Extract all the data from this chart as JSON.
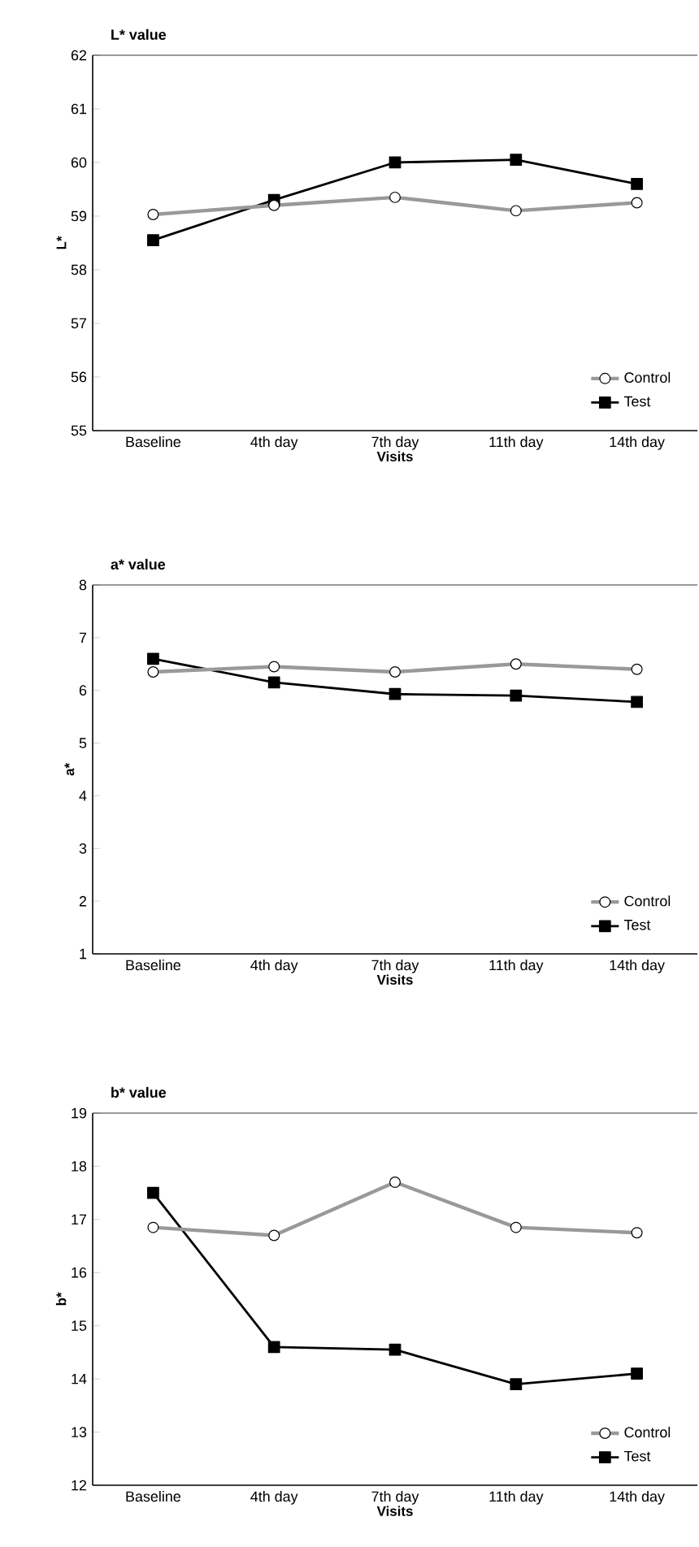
{
  "chart_data": [
    {
      "type": "line",
      "title": "L* value",
      "xlabel": "Visits",
      "ylabel": "L*",
      "categories": [
        "Baseline",
        "4th day",
        "7th day",
        "11th day",
        "14th day"
      ],
      "ylim": [
        55,
        62
      ],
      "yticks": [
        55,
        56,
        57,
        58,
        59,
        60,
        61,
        62
      ],
      "legend": "bottom right",
      "line_style": "solid",
      "series": [
        {
          "name": "Control",
          "color": "#999999",
          "marker": "circle",
          "values": [
            59.03,
            59.2,
            59.35,
            59.1,
            59.25
          ]
        },
        {
          "name": "Test",
          "color": "#000000",
          "marker": "square",
          "values": [
            58.55,
            59.3,
            60.0,
            60.05,
            59.6
          ]
        }
      ]
    },
    {
      "type": "line",
      "title": "a* value",
      "xlabel": "Visits",
      "ylabel": "a*",
      "categories": [
        "Baseline",
        "4th day",
        "7th day",
        "11th day",
        "14th day"
      ],
      "ylim": [
        1,
        8
      ],
      "yticks": [
        1,
        2,
        3,
        4,
        5,
        6,
        7,
        8
      ],
      "legend": "bottom right",
      "line_style": "solid",
      "series": [
        {
          "name": "Control",
          "color": "#999999",
          "marker": "circle",
          "values": [
            6.35,
            6.45,
            6.35,
            6.5,
            6.4
          ]
        },
        {
          "name": "Test",
          "color": "#000000",
          "marker": "square",
          "values": [
            6.6,
            6.15,
            5.93,
            5.9,
            5.78
          ]
        }
      ]
    },
    {
      "type": "line",
      "title": "b* value",
      "xlabel": "Visits",
      "ylabel": "b*",
      "categories": [
        "Baseline",
        "4th day",
        "7th day",
        "11th day",
        "14th day"
      ],
      "ylim": [
        12,
        19
      ],
      "yticks": [
        12,
        13,
        14,
        15,
        16,
        17,
        18,
        19
      ],
      "legend": "bottom right",
      "line_style": "solid",
      "series": [
        {
          "name": "Control",
          "color": "#999999",
          "marker": "circle",
          "values": [
            16.85,
            16.7,
            17.7,
            16.85,
            16.75
          ]
        },
        {
          "name": "Test",
          "color": "#000000",
          "marker": "square",
          "values": [
            17.5,
            14.6,
            14.55,
            13.9,
            14.1
          ]
        }
      ]
    }
  ]
}
